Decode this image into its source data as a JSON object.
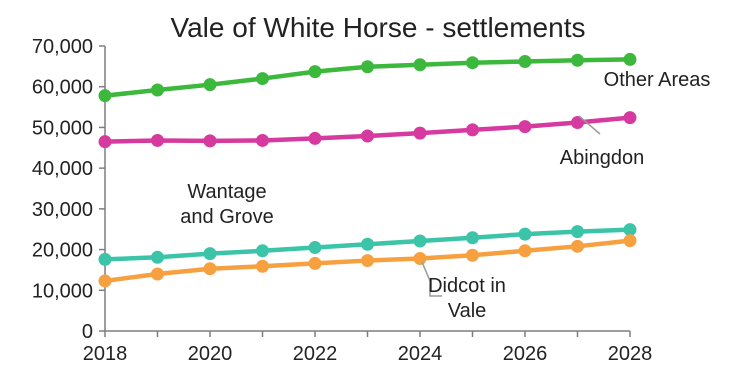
{
  "chart_data": {
    "type": "line",
    "title": "Vale of White Horse - settlements",
    "xlabel": "",
    "ylabel": "",
    "x": [
      2018,
      2019,
      2020,
      2021,
      2022,
      2023,
      2024,
      2025,
      2026,
      2027,
      2028
    ],
    "xlim": [
      2018,
      2028
    ],
    "ylim": [
      0,
      70000
    ],
    "x_ticks": [
      "2018",
      "2020",
      "2022",
      "2024",
      "2026",
      "2028"
    ],
    "y_ticks": [
      "0",
      "10,000",
      "20,000",
      "30,000",
      "40,000",
      "50,000",
      "60,000",
      "70,000"
    ],
    "grid": false,
    "legend": "none",
    "series": [
      {
        "name": "Other Areas",
        "color": "#3cb83c",
        "values": [
          57800,
          59200,
          60500,
          62000,
          63700,
          64900,
          65400,
          65900,
          66200,
          66500,
          66700
        ]
      },
      {
        "name": "Abingdon",
        "color": "#d63a9f",
        "values": [
          46500,
          46800,
          46700,
          46800,
          47300,
          47900,
          48600,
          49400,
          50200,
          51200,
          52400
        ]
      },
      {
        "name": "Wantage and Grove",
        "color": "#3cc4a8",
        "values": [
          17600,
          18100,
          19000,
          19700,
          20500,
          21300,
          22100,
          22900,
          23800,
          24400,
          24900
        ]
      },
      {
        "name": "Didcot in Vale",
        "color": "#f7a040",
        "values": [
          12300,
          14000,
          15300,
          15900,
          16600,
          17300,
          17800,
          18600,
          19700,
          20800,
          22200
        ]
      }
    ],
    "labels": [
      {
        "series": 0,
        "lines": [
          "Other Areas"
        ]
      },
      {
        "series": 1,
        "lines": [
          "Abingdon"
        ]
      },
      {
        "series": 2,
        "lines": [
          "Wantage",
          "and Grove"
        ]
      },
      {
        "series": 3,
        "lines": [
          "Didcot in",
          "Vale"
        ]
      }
    ]
  }
}
